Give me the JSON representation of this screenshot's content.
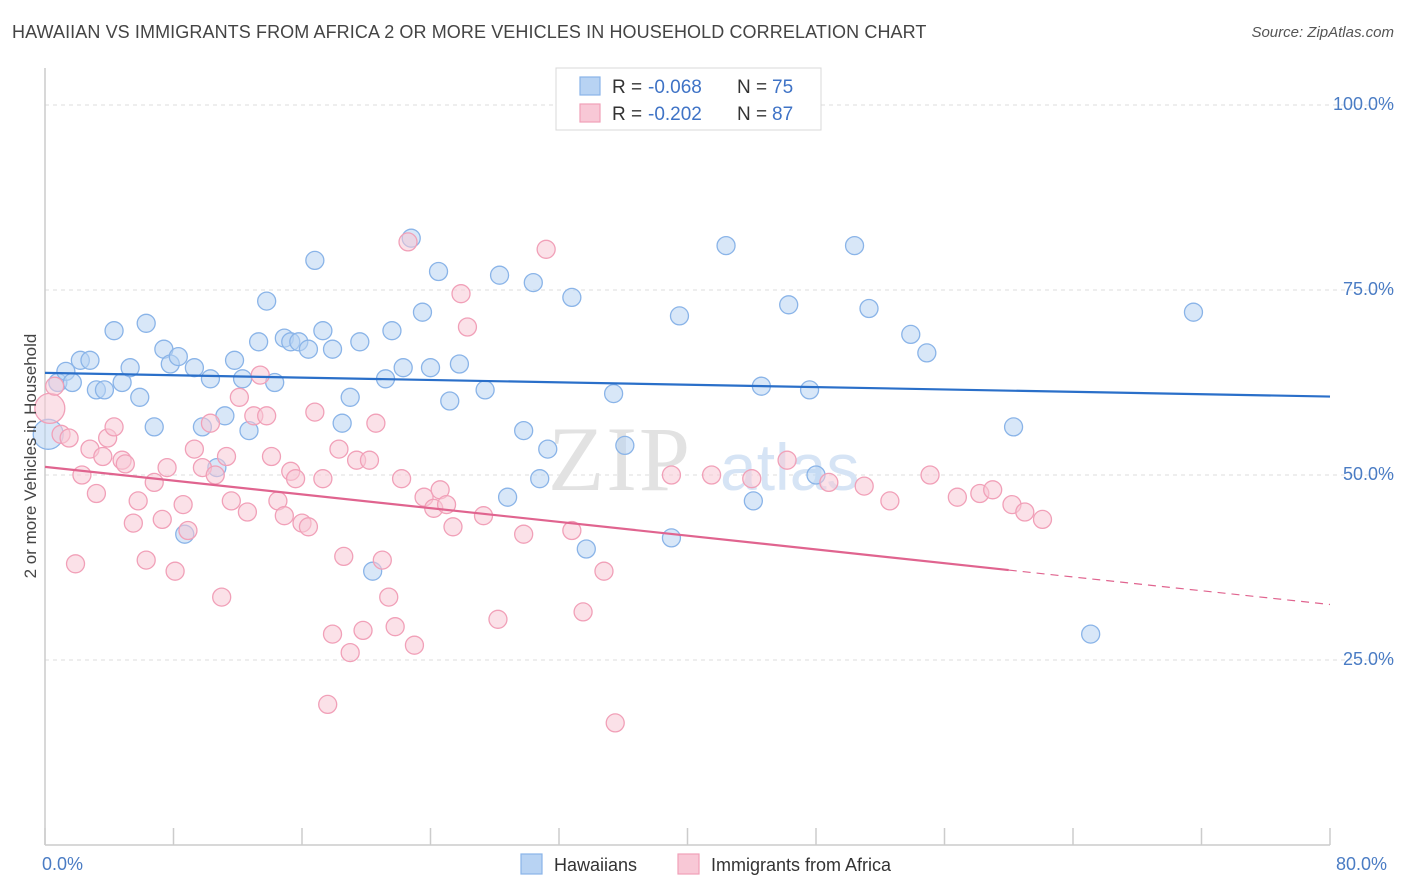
{
  "title": "HAWAIIAN VS IMMIGRANTS FROM AFRICA 2 OR MORE VEHICLES IN HOUSEHOLD CORRELATION CHART",
  "source": "Source: ZipAtlas.com",
  "watermark": {
    "zip": "ZIP",
    "atlas": "atlas"
  },
  "chart_data": {
    "type": "scatter",
    "title": "HAWAIIAN VS IMMIGRANTS FROM AFRICA 2 OR MORE VEHICLES IN HOUSEHOLD CORRELATION CHART",
    "xlabel": "",
    "ylabel": "2 or more Vehicles in Household",
    "xlim": [
      0,
      80
    ],
    "ylim": [
      0,
      105
    ],
    "x_tick_labels": [
      "0.0%",
      "80.0%"
    ],
    "y_ticks": [
      25,
      50,
      75,
      100
    ],
    "y_tick_labels": [
      "25.0%",
      "50.0%",
      "75.0%",
      "100.0%"
    ],
    "legend": {
      "r_label": "R = ",
      "n_label": "N = ",
      "entries": [
        {
          "r": "-0.068",
          "n": "75"
        },
        {
          "r": "-0.202",
          "n": "87"
        }
      ]
    },
    "series": [
      {
        "name": "Hawaiians",
        "color": "#8ab4e8",
        "fill": "#b8d3f3",
        "line_color": "#2a6fc9",
        "trend": {
          "x": [
            0,
            80
          ],
          "y": [
            63.8,
            60.6
          ],
          "solid_until": 80
        },
        "points": [
          [
            0.2,
            55.5
          ],
          [
            0.8,
            62.5
          ],
          [
            1.3,
            64
          ],
          [
            1.7,
            62.5
          ],
          [
            2.2,
            65.5
          ],
          [
            2.8,
            65.5
          ],
          [
            3.2,
            61.5
          ],
          [
            3.7,
            61.5
          ],
          [
            4.3,
            69.5
          ],
          [
            4.8,
            62.5
          ],
          [
            5.3,
            64.5
          ],
          [
            5.9,
            60.5
          ],
          [
            6.3,
            70.5
          ],
          [
            6.8,
            56.5
          ],
          [
            7.4,
            67
          ],
          [
            7.8,
            65
          ],
          [
            8.3,
            66
          ],
          [
            8.7,
            42
          ],
          [
            9.3,
            64.5
          ],
          [
            9.8,
            56.5
          ],
          [
            10.3,
            63
          ],
          [
            10.7,
            51
          ],
          [
            11.2,
            58
          ],
          [
            11.8,
            65.5
          ],
          [
            12.3,
            63
          ],
          [
            12.7,
            56
          ],
          [
            13.3,
            68
          ],
          [
            13.8,
            73.5
          ],
          [
            14.3,
            62.5
          ],
          [
            14.9,
            68.5
          ],
          [
            15.3,
            68
          ],
          [
            15.8,
            68
          ],
          [
            16.4,
            67
          ],
          [
            16.8,
            79
          ],
          [
            17.3,
            69.5
          ],
          [
            17.9,
            67
          ],
          [
            18.5,
            57
          ],
          [
            19.0,
            60.5
          ],
          [
            19.6,
            68
          ],
          [
            20.4,
            37
          ],
          [
            21.2,
            63
          ],
          [
            21.6,
            69.5
          ],
          [
            22.3,
            64.5
          ],
          [
            22.8,
            82
          ],
          [
            23.5,
            72
          ],
          [
            24.0,
            64.5
          ],
          [
            24.5,
            77.5
          ],
          [
            25.2,
            60
          ],
          [
            25.8,
            65
          ],
          [
            27.4,
            61.5
          ],
          [
            28.3,
            77
          ],
          [
            28.8,
            47
          ],
          [
            29.8,
            56
          ],
          [
            30.4,
            76
          ],
          [
            30.8,
            49.5
          ],
          [
            31.3,
            53.5
          ],
          [
            32.8,
            74
          ],
          [
            33.7,
            40
          ],
          [
            35.4,
            61
          ],
          [
            36.1,
            54
          ],
          [
            39.0,
            41.5
          ],
          [
            39.5,
            71.5
          ],
          [
            42.4,
            81
          ],
          [
            44.1,
            46.5
          ],
          [
            44.6,
            62
          ],
          [
            46.3,
            73
          ],
          [
            47.6,
            61.5
          ],
          [
            48.0,
            50
          ],
          [
            50.4,
            81
          ],
          [
            51.3,
            72.5
          ],
          [
            53.9,
            69
          ],
          [
            54.9,
            66.5
          ],
          [
            60.3,
            56.5
          ],
          [
            65.1,
            28.5
          ],
          [
            71.5,
            72
          ]
        ]
      },
      {
        "name": "Immigrants from Africa",
        "color": "#f1a0b8",
        "fill": "#f8c8d6",
        "line_color": "#e0648f",
        "trend": {
          "x": [
            0,
            80
          ],
          "y": [
            51.1,
            32.5
          ],
          "solid_until": 60
        },
        "points": [
          [
            0.3,
            59
          ],
          [
            0.6,
            62
          ],
          [
            1.0,
            55.5
          ],
          [
            1.5,
            55
          ],
          [
            1.9,
            38
          ],
          [
            2.3,
            50
          ],
          [
            2.8,
            53.5
          ],
          [
            3.2,
            47.5
          ],
          [
            3.6,
            52.5
          ],
          [
            3.9,
            55
          ],
          [
            4.3,
            56.5
          ],
          [
            4.8,
            52
          ],
          [
            5.0,
            51.5
          ],
          [
            5.5,
            43.5
          ],
          [
            5.8,
            46.5
          ],
          [
            6.3,
            38.5
          ],
          [
            6.8,
            49
          ],
          [
            7.3,
            44
          ],
          [
            7.6,
            51
          ],
          [
            8.1,
            37
          ],
          [
            8.6,
            46
          ],
          [
            8.9,
            42.5
          ],
          [
            9.3,
            53.5
          ],
          [
            9.8,
            51
          ],
          [
            10.3,
            57
          ],
          [
            10.6,
            50
          ],
          [
            11.0,
            33.5
          ],
          [
            11.3,
            52.5
          ],
          [
            11.6,
            46.5
          ],
          [
            12.1,
            60.5
          ],
          [
            12.6,
            45
          ],
          [
            13.0,
            58
          ],
          [
            13.4,
            63.5
          ],
          [
            13.8,
            58
          ],
          [
            14.1,
            52.5
          ],
          [
            14.5,
            46.5
          ],
          [
            14.9,
            44.5
          ],
          [
            15.3,
            50.5
          ],
          [
            15.6,
            49.5
          ],
          [
            16.0,
            43.5
          ],
          [
            16.4,
            43
          ],
          [
            16.8,
            58.5
          ],
          [
            17.3,
            49.5
          ],
          [
            17.6,
            19
          ],
          [
            17.9,
            28.5
          ],
          [
            18.3,
            53.5
          ],
          [
            18.6,
            39
          ],
          [
            19.0,
            26
          ],
          [
            19.4,
            52
          ],
          [
            19.8,
            29
          ],
          [
            20.2,
            52
          ],
          [
            20.6,
            57
          ],
          [
            21.0,
            38.5
          ],
          [
            21.4,
            33.5
          ],
          [
            21.8,
            29.5
          ],
          [
            22.2,
            49.5
          ],
          [
            22.6,
            81.5
          ],
          [
            23.0,
            27
          ],
          [
            23.6,
            47
          ],
          [
            24.2,
            45.5
          ],
          [
            24.6,
            48
          ],
          [
            25.0,
            46
          ],
          [
            25.4,
            43
          ],
          [
            25.9,
            74.5
          ],
          [
            26.3,
            70
          ],
          [
            27.3,
            44.5
          ],
          [
            28.2,
            30.5
          ],
          [
            29.8,
            42
          ],
          [
            31.2,
            80.5
          ],
          [
            32.8,
            42.5
          ],
          [
            33.5,
            31.5
          ],
          [
            34.8,
            37
          ],
          [
            35.5,
            16.5
          ],
          [
            39.0,
            50
          ],
          [
            41.5,
            50
          ],
          [
            44.0,
            49.5
          ],
          [
            46.2,
            52
          ],
          [
            48.8,
            49
          ],
          [
            51.0,
            48.5
          ],
          [
            52.6,
            46.5
          ],
          [
            55.1,
            50
          ],
          [
            56.8,
            47
          ],
          [
            58.2,
            47.5
          ],
          [
            59.0,
            48
          ],
          [
            60.2,
            46
          ],
          [
            61.0,
            45
          ],
          [
            62.1,
            44
          ]
        ]
      }
    ]
  },
  "bottom_legend": [
    "Hawaiians",
    "Immigrants from Africa"
  ]
}
